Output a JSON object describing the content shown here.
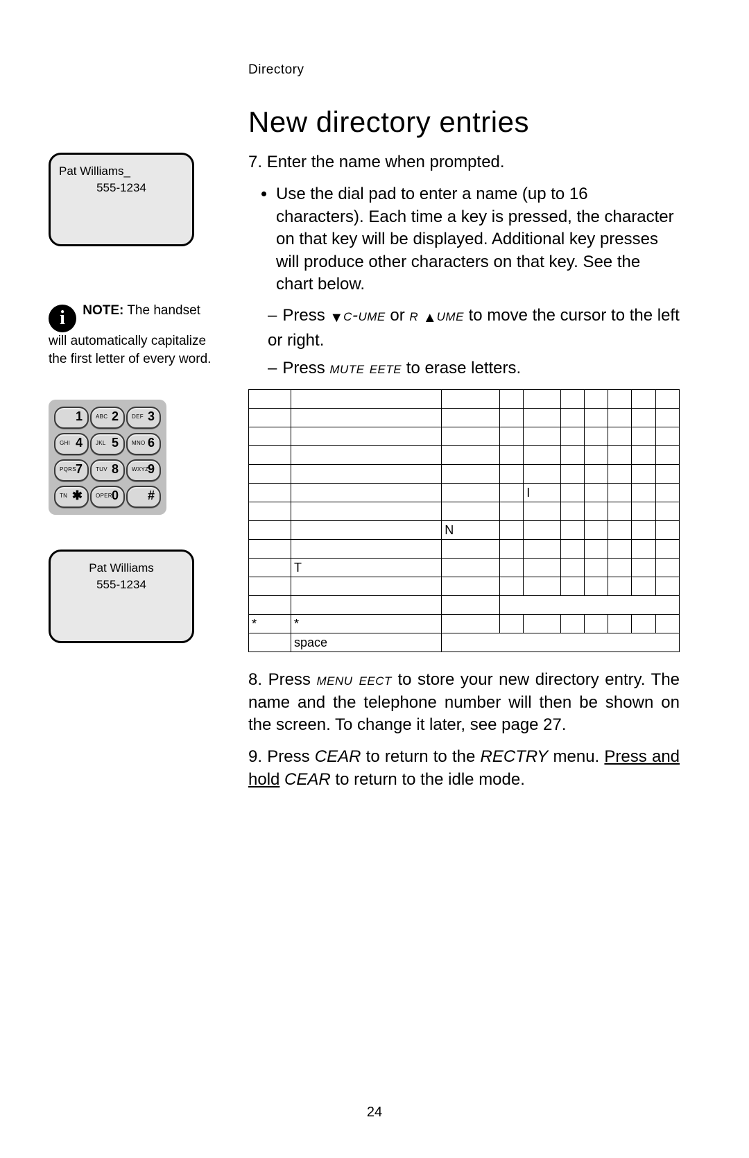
{
  "header": {
    "breadcrumb": "Directory",
    "title": "New directory entries"
  },
  "side": {
    "lcd_edit": {
      "line1": "Pat Williams_",
      "line2": "555-1234"
    },
    "note": {
      "label": "NOTE:",
      "text": " The handset will automatically capi­talize the first letter of every word."
    },
    "keypad": {
      "keys": [
        [
          {
            "sm": "",
            "big": "1"
          },
          {
            "sm": "ABC",
            "big": "2"
          },
          {
            "sm": "DEF",
            "big": "3"
          }
        ],
        [
          {
            "sm": "GHI",
            "big": "4"
          },
          {
            "sm": "JKL",
            "big": "5"
          },
          {
            "sm": "MNO",
            "big": "6"
          }
        ],
        [
          {
            "sm": "PQRS",
            "big": "7"
          },
          {
            "sm": "TUV",
            "big": "8"
          },
          {
            "sm": "WXYZ",
            "big": "9"
          }
        ],
        [
          {
            "sm": "TN",
            "big": "✱"
          },
          {
            "sm": "OPER",
            "big": "0"
          },
          {
            "sm": "",
            "big": "#"
          }
        ]
      ]
    },
    "lcd_done": {
      "line1": "Pat Williams",
      "line2": "555-1234"
    }
  },
  "steps": {
    "s7": {
      "num": "7.",
      "text": "Enter the name when prompted."
    },
    "bullet1": "Use the dial pad to enter a name (up to 16 characters). Each time a key is pressed, the character on that key will be displayed. Additional key presses will produce other characters on that key. See the chart below.",
    "sub1": {
      "pre": "Press ",
      "k1": "c-ume",
      "mid": " or ",
      "r": "r",
      "k2": "ume",
      "post": " to move the cursor to the left or right."
    },
    "sub2": {
      "pre": "Press ",
      "k": "mute  eete",
      "post": " to erase letters."
    },
    "s8": {
      "num": "8.",
      "pre": "Press ",
      "k": "menu  eect",
      "post": " to store your new directory entry. The name and the telephone number will then be shown on the screen. To change it later, see page 27."
    },
    "s9": {
      "num": "9.",
      "pre": "Press ",
      "k1": "CEAR",
      "mid": " to return to the ",
      "k2": "RECTRY",
      "mid2": " menu. ",
      "hold": "Press and hold",
      "k3": " CEAR",
      "post": " to return to the idle mode."
    }
  },
  "chart": {
    "header": [
      "",
      "",
      "",
      "",
      ""
    ],
    "rows": [
      [
        "",
        "",
        "",
        "",
        "",
        "",
        "",
        "",
        "",
        ""
      ],
      [
        "",
        "",
        "",
        "",
        "",
        "",
        "",
        "",
        ""
      ],
      [
        "",
        "",
        "",
        "",
        "",
        "",
        "",
        "",
        ""
      ],
      [
        "",
        "",
        "",
        "",
        "",
        "",
        "",
        "",
        ""
      ],
      [
        "",
        "",
        "",
        "",
        "I",
        "",
        "",
        "",
        ""
      ],
      [
        "",
        "",
        "",
        "",
        "",
        "",
        "",
        "",
        ""
      ],
      [
        "",
        "",
        "N",
        "",
        "",
        "",
        "",
        "",
        ""
      ],
      [
        "",
        "",
        "",
        "",
        "",
        "",
        "",
        "",
        "",
        ""
      ],
      [
        "",
        "T",
        "",
        "",
        "",
        "",
        "",
        "",
        ""
      ],
      [
        "",
        "",
        "",
        "",
        "",
        "",
        "",
        "",
        "",
        ""
      ],
      [
        "",
        "",
        ""
      ],
      [
        "*",
        "*",
        "",
        "",
        "",
        "",
        "",
        "",
        ""
      ],
      [
        "",
        "space"
      ]
    ]
  },
  "page_number": "24",
  "colors": {
    "page_bg": "#ffffff",
    "lcd_bg": "#e8e8e8",
    "keypad_bg": "#bfbfbf",
    "key_bg": "#d9d9d9",
    "border": "#000000"
  }
}
